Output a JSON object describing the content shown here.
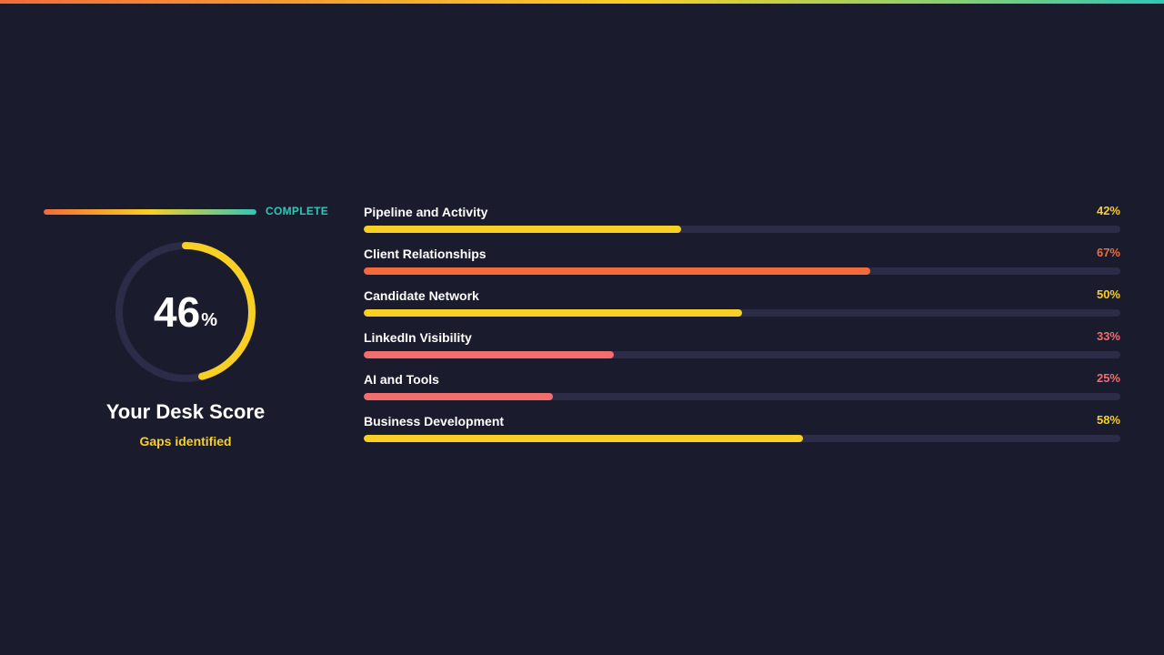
{
  "colors": {
    "background": "#1b1b2e",
    "track": "#2c2c48",
    "yellow": "#f8cf25",
    "orange": "#f36b3a",
    "red": "#f26d6d",
    "teal": "#2fc7b7"
  },
  "progress": {
    "label": "COMPLETE",
    "fraction": 1.0
  },
  "score": {
    "value": "46",
    "unit": "%",
    "fraction": 0.46,
    "ring_color": "#f8cf25",
    "title": "Your Desk Score",
    "subtitle": "Gaps identified"
  },
  "categories": [
    {
      "name": "Pipeline and Activity",
      "percent_label": "42%",
      "fraction": 0.42,
      "color": "#f8cf25"
    },
    {
      "name": "Client Relationships",
      "percent_label": "67%",
      "fraction": 0.67,
      "color": "#f36b3a"
    },
    {
      "name": "Candidate Network",
      "percent_label": "50%",
      "fraction": 0.5,
      "color": "#f8cf25"
    },
    {
      "name": "LinkedIn Visibility",
      "percent_label": "33%",
      "fraction": 0.33,
      "color": "#f26d6d"
    },
    {
      "name": "AI and Tools",
      "percent_label": "25%",
      "fraction": 0.25,
      "color": "#f26d6d"
    },
    {
      "name": "Business Development",
      "percent_label": "58%",
      "fraction": 0.58,
      "color": "#f8cf25"
    }
  ]
}
